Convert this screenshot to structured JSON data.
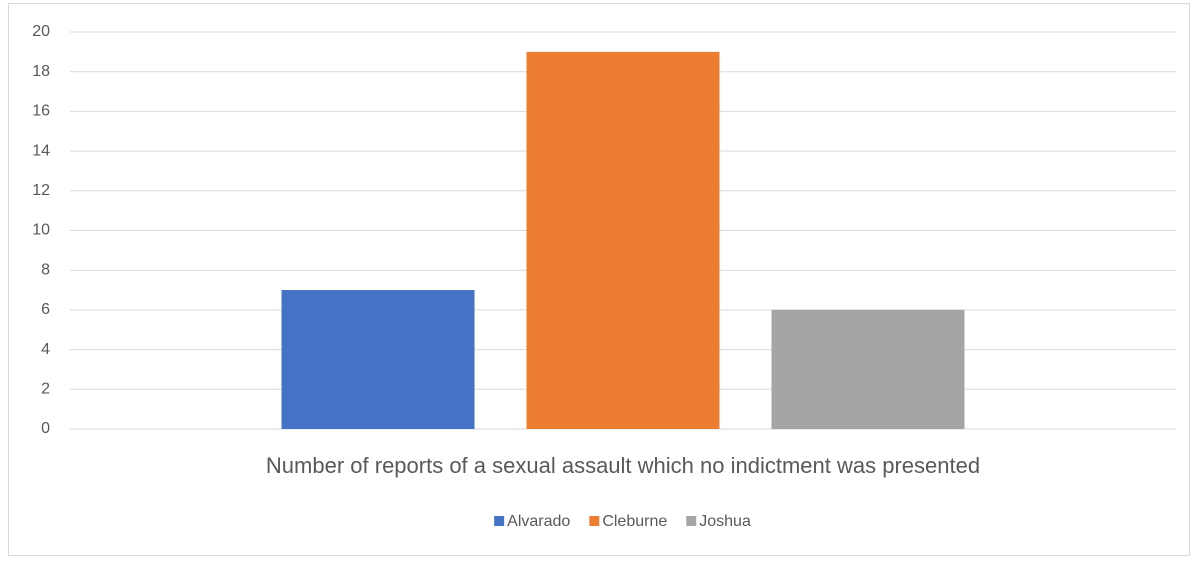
{
  "chart_data": {
    "type": "bar",
    "categories": [
      "Number of reports of a sexual assault which no indictment was presented"
    ],
    "series": [
      {
        "name": "Alvarado",
        "color": "#4472c4",
        "values": [
          7
        ]
      },
      {
        "name": "Cleburne",
        "color": "#ed7d31",
        "values": [
          19
        ]
      },
      {
        "name": "Joshua",
        "color": "#a5a5a5",
        "values": [
          6
        ]
      }
    ],
    "ylim": [
      0,
      20
    ],
    "yticks": [
      0,
      2,
      4,
      6,
      8,
      10,
      12,
      14,
      16,
      18,
      20
    ],
    "grid": true,
    "legend": "bottom"
  }
}
